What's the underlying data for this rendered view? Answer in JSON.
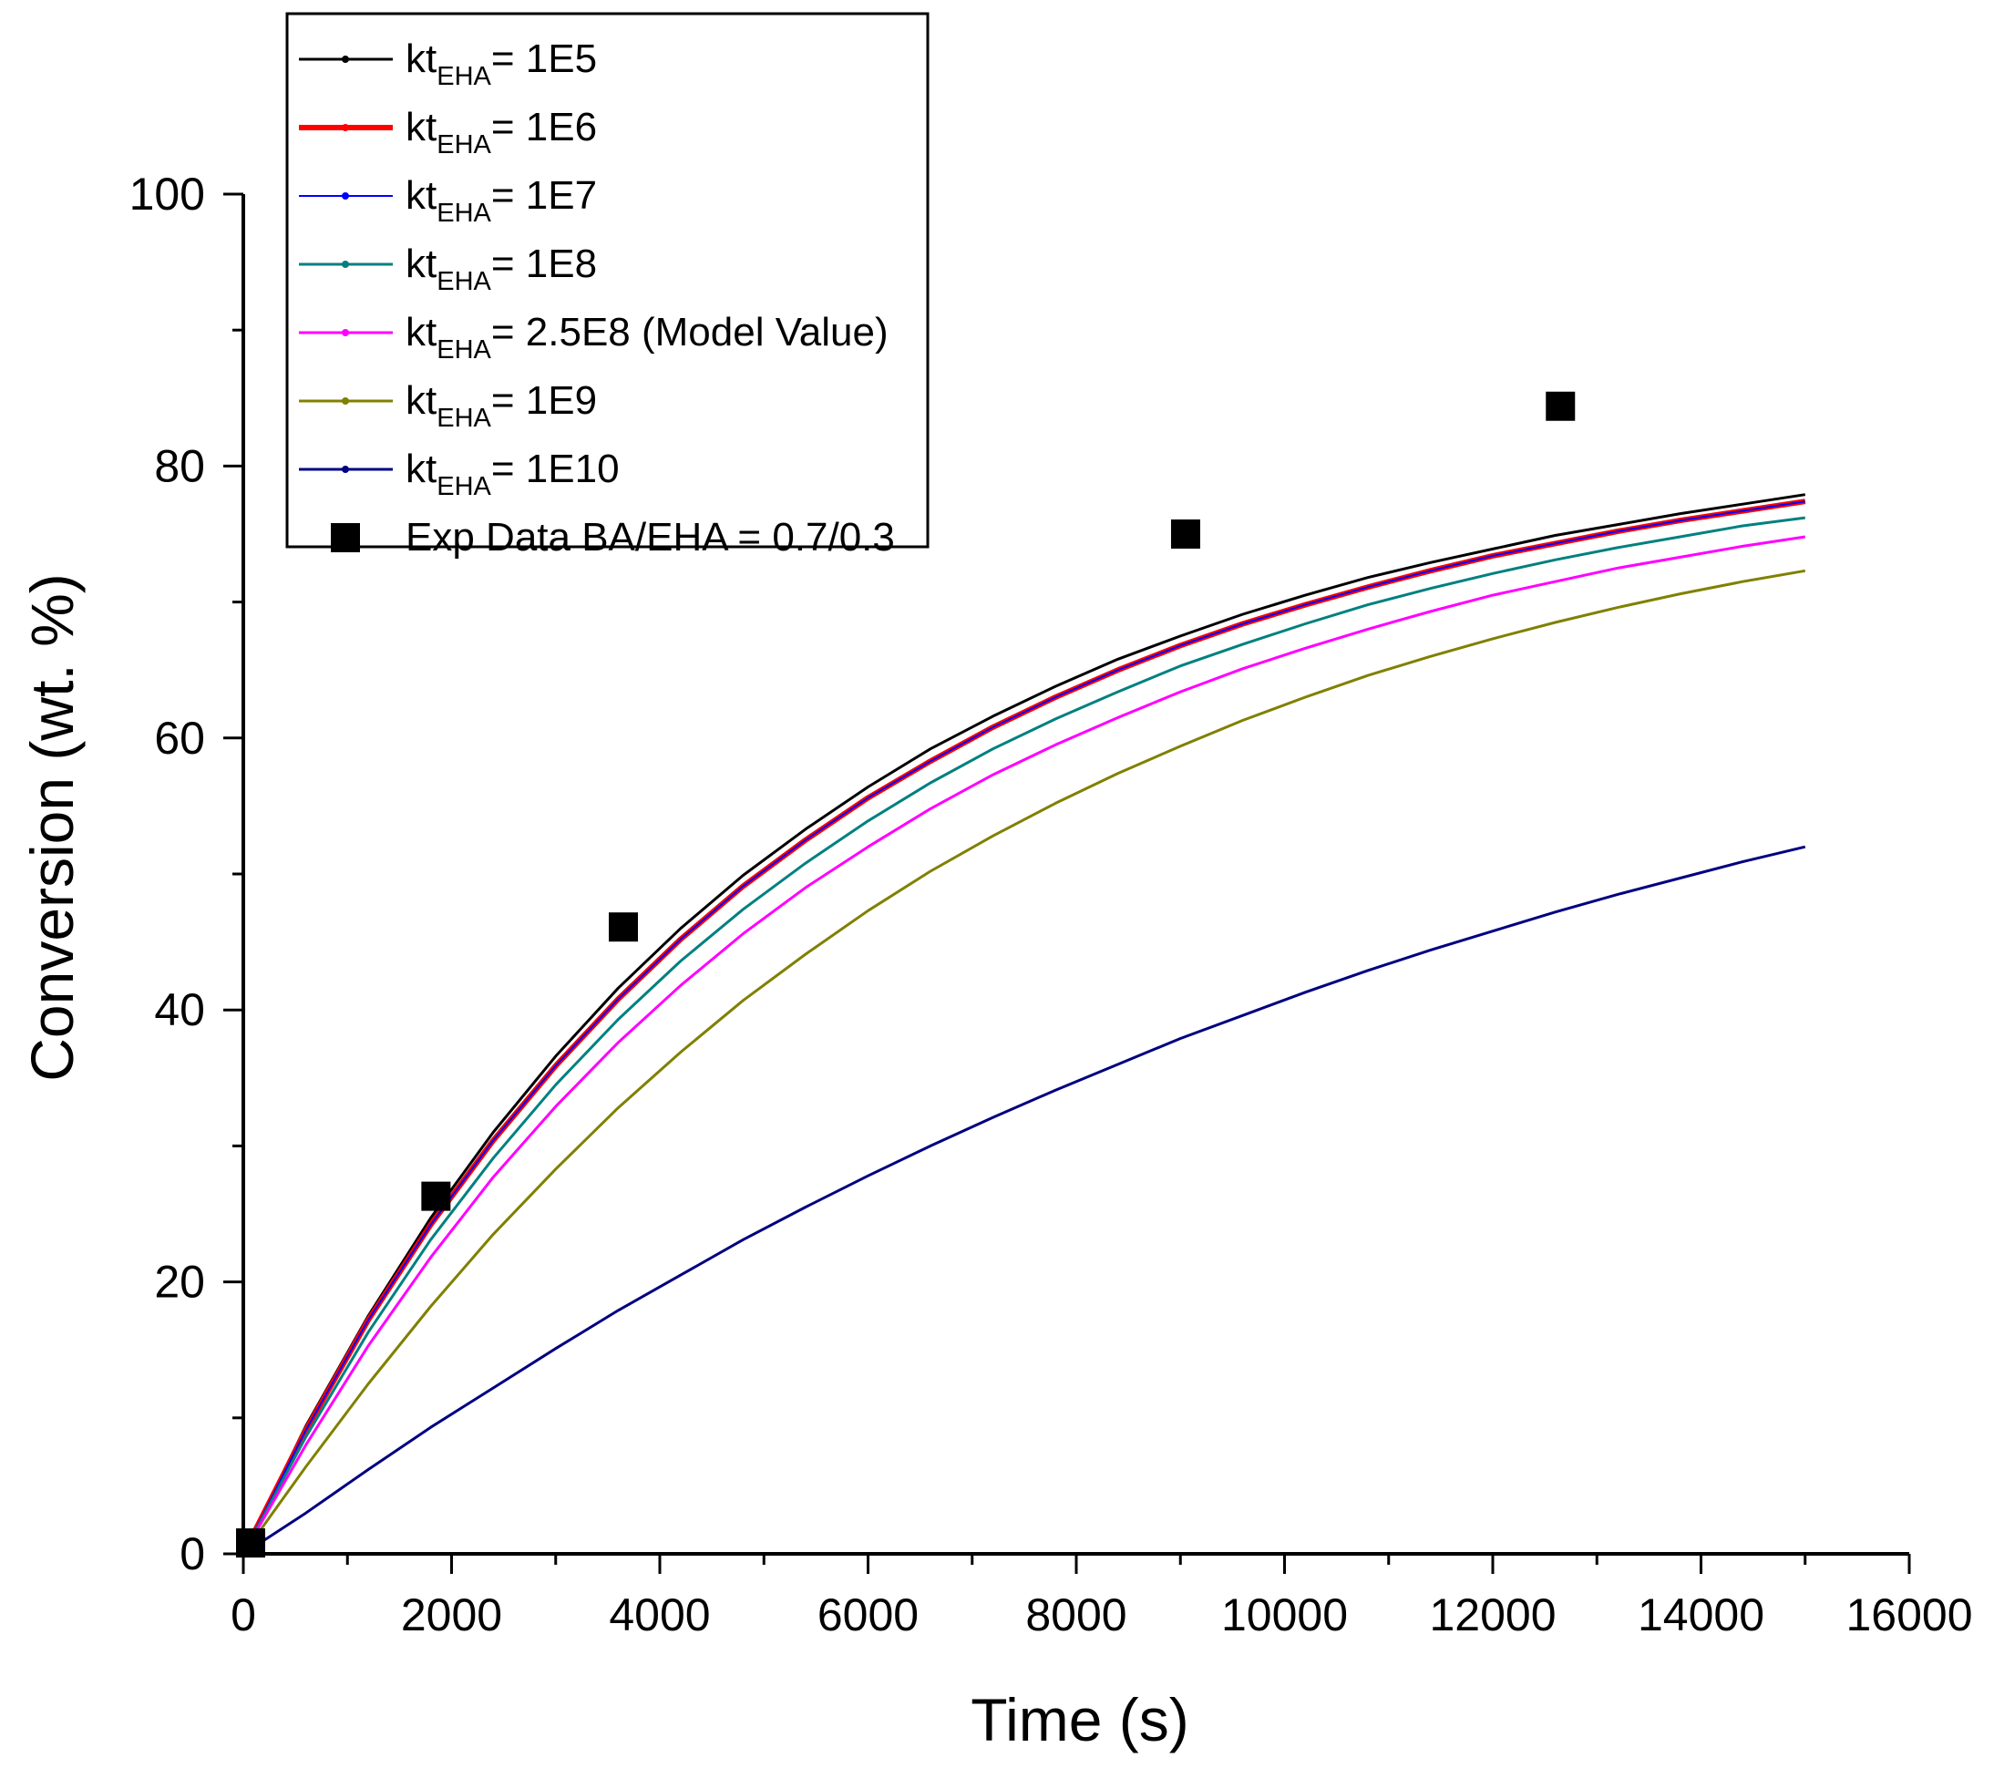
{
  "chart_data": {
    "type": "line",
    "title": "",
    "xlabel": "Time (s)",
    "ylabel": "Conversion (wt. %)",
    "xlim": [
      0,
      16000
    ],
    "ylim": [
      0,
      100
    ],
    "xticks": [
      "0",
      "2000",
      "4000",
      "6000",
      "8000",
      "10000",
      "12000",
      "14000",
      "16000"
    ],
    "yticks": [
      "0",
      "20",
      "40",
      "60",
      "80",
      "100"
    ],
    "grid": false,
    "legend_position": "top-left",
    "x": [
      0,
      600,
      1200,
      1800,
      2400,
      3000,
      3600,
      4200,
      4800,
      5400,
      6000,
      6600,
      7200,
      7800,
      8400,
      9000,
      9600,
      10200,
      10800,
      11400,
      12000,
      12600,
      13200,
      13800,
      14400,
      15000
    ],
    "series": [
      {
        "name": "1E5",
        "label_prefix": "kt",
        "label_sub": "EHA",
        "label_suffix": "= 1E5",
        "color": "#000000",
        "width": 3,
        "values": [
          0.0,
          9.4,
          17.5,
          24.7,
          31.0,
          36.6,
          41.6,
          46.0,
          49.9,
          53.3,
          56.4,
          59.2,
          61.6,
          63.8,
          65.8,
          67.5,
          69.1,
          70.5,
          71.8,
          72.9,
          73.9,
          74.9,
          75.7,
          76.5,
          77.2,
          77.9
        ]
      },
      {
        "name": "1E6",
        "label_prefix": "kt",
        "label_sub": "EHA",
        "label_suffix": "= 1E6",
        "color": "#ff0000",
        "width": 6,
        "values": [
          0.0,
          9.1,
          17.2,
          24.2,
          30.4,
          35.9,
          40.8,
          45.2,
          49.1,
          52.5,
          55.6,
          58.3,
          60.8,
          63.0,
          65.0,
          66.8,
          68.4,
          69.8,
          71.1,
          72.3,
          73.4,
          74.3,
          75.2,
          76.0,
          76.7,
          77.4
        ]
      },
      {
        "name": "1E7",
        "label_prefix": "kt",
        "label_sub": "EHA",
        "label_suffix": "= 1E7",
        "color": "#0000ff",
        "width": 2,
        "values": [
          0.0,
          9.1,
          17.2,
          24.2,
          30.4,
          35.9,
          40.8,
          45.2,
          49.1,
          52.5,
          55.6,
          58.3,
          60.8,
          63.0,
          65.0,
          66.8,
          68.4,
          69.8,
          71.1,
          72.3,
          73.4,
          74.3,
          75.2,
          76.0,
          76.7,
          77.4
        ]
      },
      {
        "name": "1E8",
        "label_prefix": "kt",
        "label_sub": "EHA",
        "label_suffix": "= 1E8",
        "color": "#008080",
        "width": 3,
        "values": [
          0.0,
          8.6,
          16.3,
          23.1,
          29.1,
          34.5,
          39.3,
          43.6,
          47.4,
          50.8,
          53.9,
          56.7,
          59.2,
          61.4,
          63.4,
          65.3,
          66.9,
          68.4,
          69.8,
          71.0,
          72.1,
          73.1,
          74.0,
          74.8,
          75.6,
          76.2
        ]
      },
      {
        "name": "2.5E8",
        "label_prefix": "kt",
        "label_sub": "EHA",
        "label_suffix": "= 2.5E8 (Model Value)",
        "color": "#ff00ff",
        "width": 3,
        "values": [
          0.0,
          8.0,
          15.3,
          21.8,
          27.7,
          32.9,
          37.6,
          41.8,
          45.6,
          49.0,
          52.0,
          54.8,
          57.3,
          59.5,
          61.5,
          63.4,
          65.1,
          66.6,
          68.0,
          69.3,
          70.5,
          71.5,
          72.5,
          73.3,
          74.1,
          74.8
        ]
      },
      {
        "name": "1E9",
        "label_prefix": "kt",
        "label_sub": "EHA",
        "label_suffix": "= 1E9",
        "color": "#808000",
        "width": 3,
        "values": [
          0.0,
          6.4,
          12.5,
          18.2,
          23.5,
          28.3,
          32.8,
          36.9,
          40.7,
          44.1,
          47.3,
          50.2,
          52.8,
          55.2,
          57.4,
          59.4,
          61.3,
          63.0,
          64.6,
          66.0,
          67.3,
          68.5,
          69.6,
          70.6,
          71.5,
          72.3
        ]
      },
      {
        "name": "1E10",
        "label_prefix": "kt",
        "label_sub": "EHA",
        "label_suffix": "= 1E10",
        "color": "#000080",
        "width": 3,
        "values": [
          0.0,
          3.0,
          6.2,
          9.3,
          12.2,
          15.1,
          17.9,
          20.5,
          23.1,
          25.5,
          27.8,
          30.0,
          32.1,
          34.1,
          36.0,
          37.9,
          39.6,
          41.3,
          42.9,
          44.4,
          45.8,
          47.2,
          48.5,
          49.7,
          50.9,
          52.0
        ]
      }
    ],
    "scatter": {
      "name": "Exp Data BA/EHA = 0.7/0.3",
      "color": "#000000",
      "marker": "square",
      "x": [
        70,
        1850,
        3650,
        9050,
        12650
      ],
      "y": [
        0.8,
        26.3,
        46.1,
        75.0,
        84.4
      ]
    }
  }
}
